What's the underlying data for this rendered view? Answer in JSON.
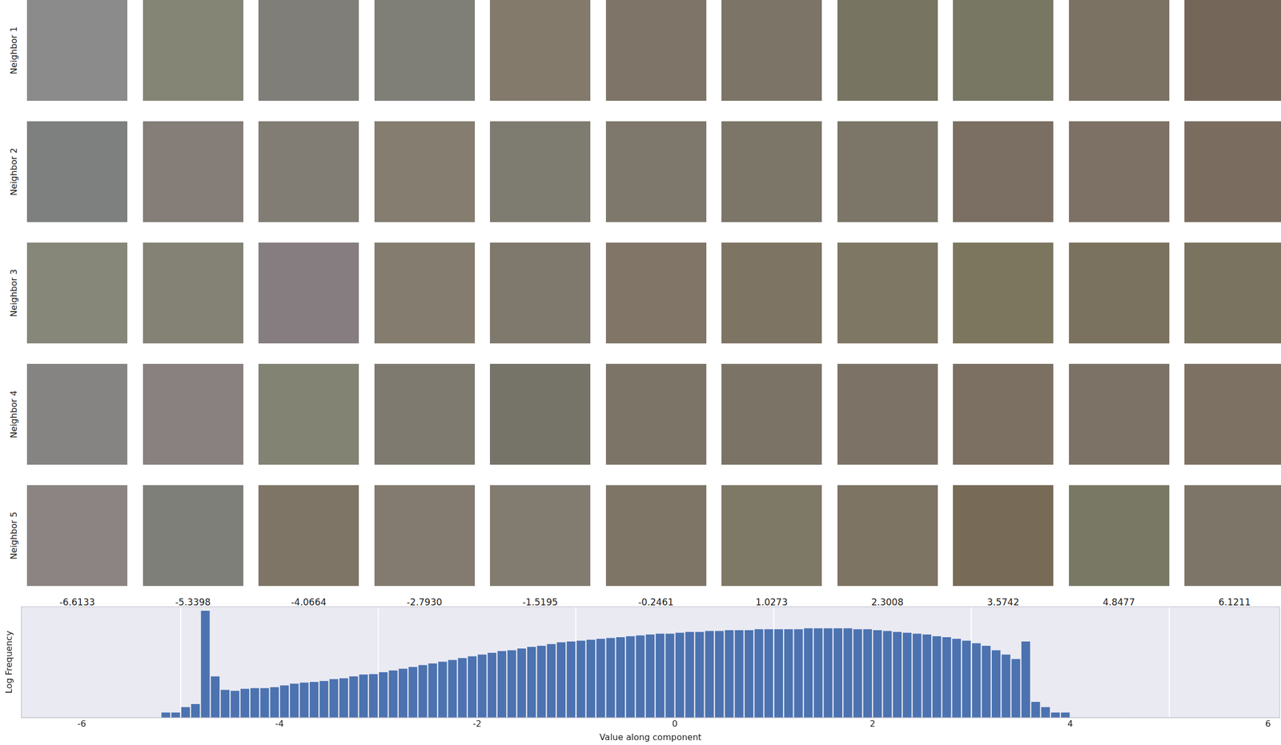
{
  "patches": {
    "column_values": [
      -6.6133,
      -5.3398,
      -4.0664,
      {
        "value": -2.793,
        "label": "-2.7930"
      },
      -1.5195,
      -0.2461,
      1.0273,
      2.3008,
      3.5742,
      4.8477,
      6.1211
    ],
    "rows": [
      {
        "label": "Neighbor 1",
        "colors": [
          "#8b8b8b",
          "#858575",
          "#807e78",
          "#7f7f78",
          "#837a6c",
          "#7e7568",
          "#7b7467",
          "#777461",
          "#787764",
          "#7b7264",
          "#74675a"
        ]
      },
      {
        "label": "Neighbor 2",
        "colors": [
          "#7e8080",
          "#847d78",
          "#827d74",
          "#847d70",
          "#7e7c70",
          "#7e776b",
          "#7b7668",
          "#7b7667",
          "#7a6f62",
          "#7c7164",
          "#7a6d60"
        ]
      },
      {
        "label": "Neighbor 3",
        "colors": [
          "#868679",
          "#848175",
          "#857d7f",
          "#847d6f",
          "#7f786d",
          "#807566",
          "#7e7463",
          "#7e7764",
          "#7d765f",
          "#7a725e",
          "#7a735f"
        ]
      },
      {
        "label": "Neighbor 4",
        "colors": [
          "#868482",
          "#898080",
          "#828373",
          "#7f7a6f",
          "#767468",
          "#7c7467",
          "#7b7466",
          "#7c7366",
          "#7b7062",
          "#7c7266",
          "#7c7163"
        ]
      },
      {
        "label": "Neighbor 5",
        "colors": [
          "#8b8482",
          "#7e7f79",
          "#7e7567",
          "#837b6f",
          "#827c70",
          "#7e7566",
          "#7e7866",
          "#7d7464",
          "#776a57",
          "#787865",
          "#7d7567"
        ]
      }
    ]
  },
  "chart_data": {
    "type": "histogram",
    "x_label": "Value along component",
    "y_label": "Log Frequency",
    "color": "#4c72b0",
    "bins": [
      -5.2,
      -5.1,
      -5.0,
      -4.9,
      -4.8,
      -4.7,
      -4.6,
      -4.5,
      -4.4,
      -4.3,
      -4.2,
      -4.1,
      -4.0,
      -3.9,
      -3.8,
      -3.7,
      -3.6,
      -3.5,
      -3.4,
      -3.3,
      -3.2,
      -3.1,
      -3.0,
      -2.9,
      -2.8,
      -2.7,
      -2.6,
      -2.5,
      -2.4,
      -2.3,
      -2.2,
      -2.1,
      -2.0,
      -1.9,
      -1.8,
      -1.7,
      -1.6,
      -1.5,
      -1.4,
      -1.3,
      -1.2,
      -1.1,
      -1.0,
      -0.9,
      -0.8,
      -0.7,
      -0.6,
      -0.5,
      -0.4,
      -0.3,
      -0.2,
      -0.1,
      0.0,
      0.1,
      0.2,
      0.3,
      0.4,
      0.5,
      0.6,
      0.7,
      0.8,
      0.9,
      1.0,
      1.1,
      1.2,
      1.3,
      1.4,
      1.5,
      1.6,
      1.7,
      1.8,
      1.9,
      2.0,
      2.1,
      2.2,
      2.3,
      2.4,
      2.5,
      2.6,
      2.7,
      2.8,
      2.9,
      3.0,
      3.1,
      3.2,
      3.3,
      3.4,
      3.5,
      3.6,
      3.7,
      3.8,
      3.9,
      4.0
    ],
    "counts": [
      1,
      1,
      2,
      3,
      570000,
      110,
      19,
      17,
      22,
      24,
      24,
      27,
      34,
      43,
      49,
      54,
      61,
      77,
      86,
      110,
      140,
      150,
      190,
      240,
      300,
      380,
      480,
      600,
      750,
      940,
      1200,
      1500,
      1900,
      2400,
      3000,
      3300,
      4200,
      5200,
      5900,
      7400,
      9300,
      10400,
      11600,
      13100,
      14700,
      16400,
      18400,
      20600,
      23100,
      25900,
      29000,
      29000,
      32600,
      36500,
      36500,
      40900,
      40900,
      45800,
      45800,
      45800,
      51400,
      51400,
      51400,
      51400,
      51400,
      57700,
      57700,
      57700,
      57700,
      57700,
      51400,
      51400,
      45800,
      40900,
      36500,
      32600,
      29000,
      25900,
      20600,
      18400,
      14700,
      11600,
      8300,
      5900,
      3300,
      1900,
      1060,
      10400,
      4,
      2,
      1,
      1
    ],
    "xlim": [
      -6.6133,
      6.1211
    ],
    "xticks": [
      -6,
      -4,
      -2,
      0,
      2,
      4,
      6
    ],
    "ylim": [
      0.5,
      1000000
    ],
    "log": "y",
    "grid": true,
    "tick_labels": "x"
  }
}
